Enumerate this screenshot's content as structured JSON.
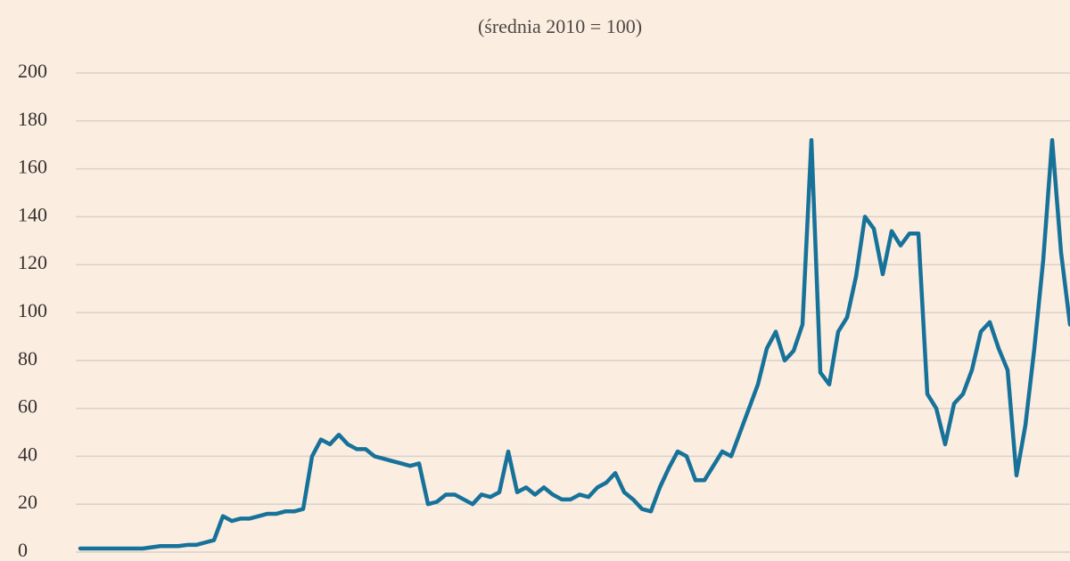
{
  "chart_data": {
    "type": "line",
    "subtitle": "(średnia 2010 = 100)",
    "color": "#17729a",
    "ylim": [
      0,
      200
    ],
    "yticks": [
      0,
      20,
      40,
      60,
      80,
      100,
      120,
      140,
      160,
      180,
      200
    ],
    "grid": true,
    "values": [
      1.5,
      1.5,
      1.5,
      1.5,
      1.5,
      1.5,
      1.5,
      1.5,
      2,
      2.5,
      2.5,
      2.5,
      3,
      3,
      4,
      5,
      15,
      13,
      14,
      14,
      15,
      16,
      16,
      17,
      17,
      18,
      40,
      47,
      45,
      49,
      45,
      43,
      43,
      40,
      39,
      38,
      37,
      36,
      37,
      20,
      21,
      24,
      24,
      22,
      20,
      24,
      23,
      25,
      42,
      25,
      27,
      24,
      27,
      24,
      22,
      22,
      24,
      23,
      27,
      29,
      33,
      25,
      22,
      18,
      17,
      27,
      35,
      42,
      40,
      30,
      30,
      36,
      42,
      40,
      50,
      60,
      70,
      85,
      92,
      80,
      84,
      95,
      172,
      75,
      70,
      92,
      98,
      115,
      140,
      135,
      116,
      134,
      128,
      133,
      133,
      66,
      60,
      45,
      62,
      66,
      76,
      92,
      96,
      85,
      76,
      32,
      53,
      85,
      122,
      172,
      125,
      95
    ]
  }
}
